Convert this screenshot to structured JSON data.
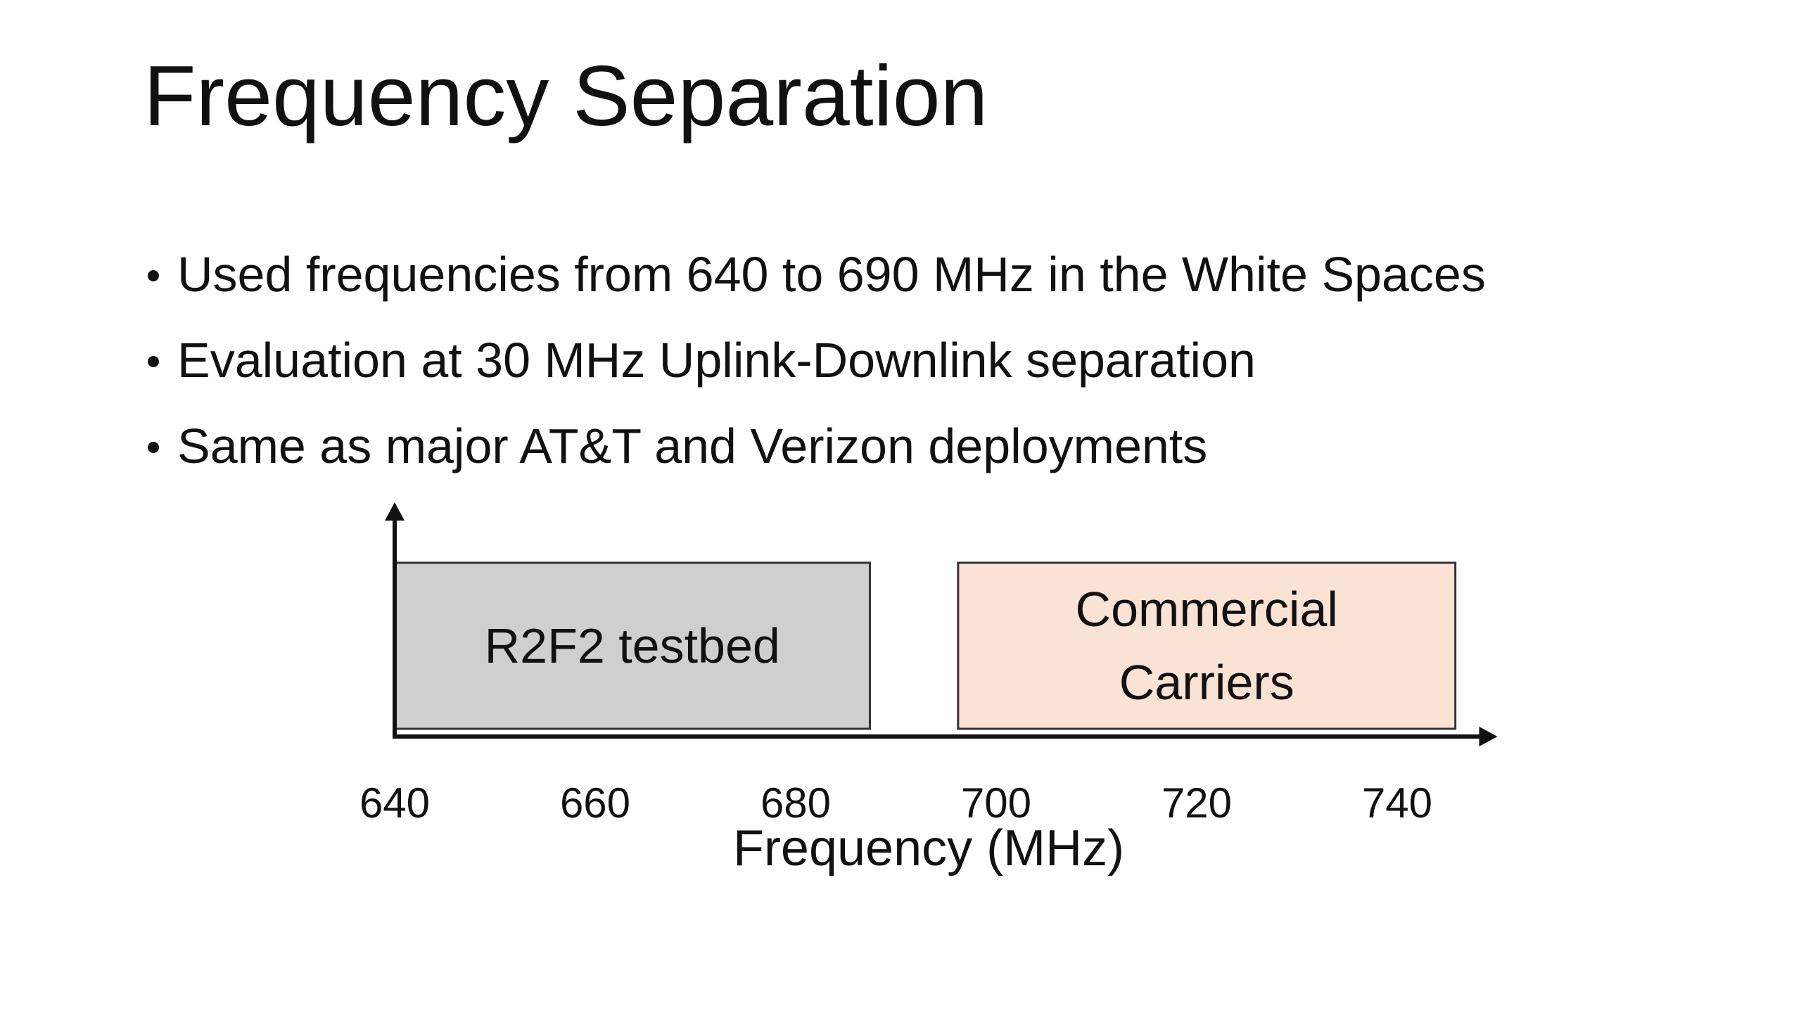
{
  "title": "Frequency Separation",
  "bullets": [
    "Used frequencies from 640 to 690 MHz in the White Spaces",
    "Evaluation at 30 MHz Uplink-Downlink separation",
    "Same as major AT&T and Verizon deployments"
  ],
  "diagram": {
    "xlabel": "Frequency (MHz)",
    "xlim": [
      640,
      750
    ],
    "xticks": [
      640,
      660,
      680,
      700,
      720,
      740
    ],
    "bands": [
      {
        "lines": [
          "R2F2 testbed"
        ],
        "start": 640,
        "end": 687.4,
        "color": "#d0cfcf"
      },
      {
        "lines": [
          "Commercial",
          "Carriers"
        ],
        "start": 696.2,
        "end": 745.8,
        "color": "#fae2d5"
      }
    ]
  }
}
